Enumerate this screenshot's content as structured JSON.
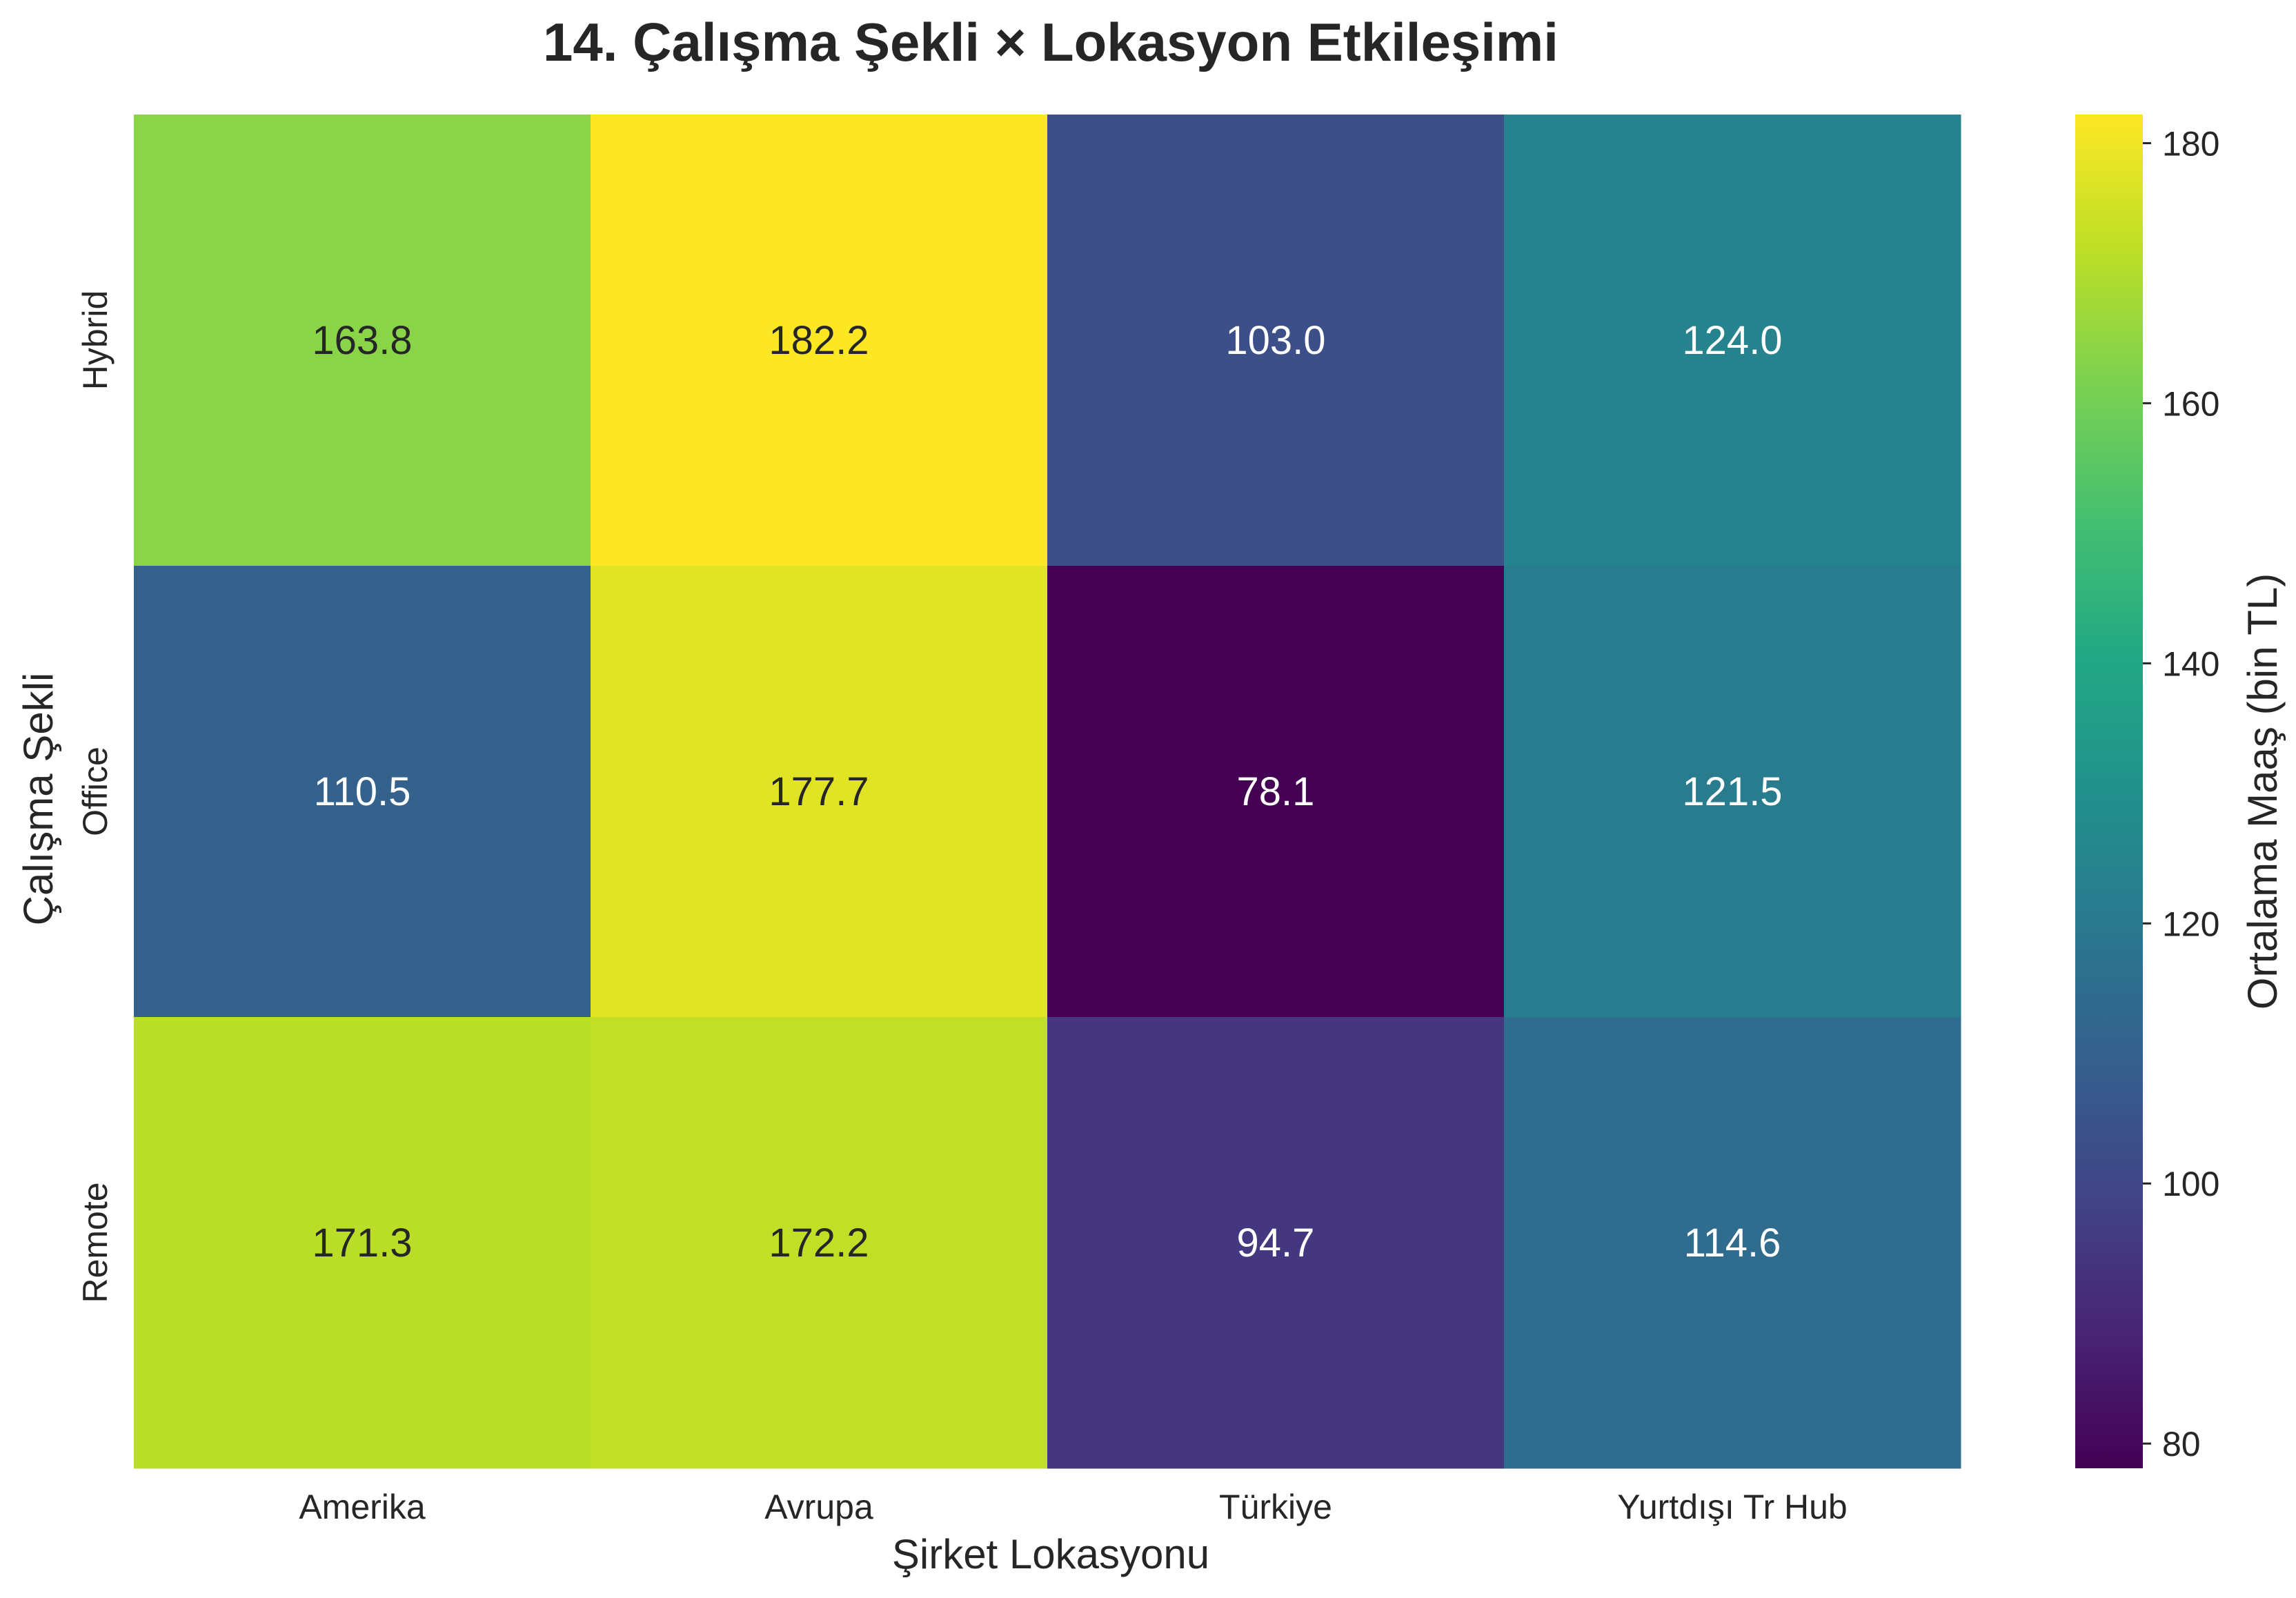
{
  "chart_data": {
    "type": "heatmap",
    "title": "14. Çalışma Şekli × Lokasyon Etkileşimi",
    "xlabel": "Şirket Lokasyonu",
    "ylabel": "Çalışma Şekli",
    "x_categories": [
      "Amerika",
      "Avrupa",
      "Türkiye",
      "Yurtdışı Tr Hub"
    ],
    "y_categories": [
      "Hybrid",
      "Office",
      "Remote"
    ],
    "values": [
      [
        163.8,
        182.2,
        103.0,
        124.0
      ],
      [
        110.5,
        177.7,
        78.1,
        121.5
      ],
      [
        171.3,
        172.2,
        94.7,
        114.6
      ]
    ],
    "value_labels": [
      [
        "163.8",
        "182.2",
        "103.0",
        "124.0"
      ],
      [
        "110.5",
        "177.7",
        "78.1",
        "121.5"
      ],
      [
        "171.3",
        "172.2",
        "94.7",
        "114.6"
      ]
    ],
    "colormap": "viridis",
    "colorbar": {
      "label": "Ortalama Maaş (bin TL)",
      "range": [
        78.1,
        182.2
      ],
      "ticks": [
        80,
        100,
        120,
        140,
        160,
        180
      ],
      "tick_labels": [
        "80",
        "100",
        "120",
        "140",
        "160",
        "180"
      ]
    },
    "annotation_colors": {
      "dark_text": "#262626",
      "light_text": "#ffffff"
    }
  }
}
